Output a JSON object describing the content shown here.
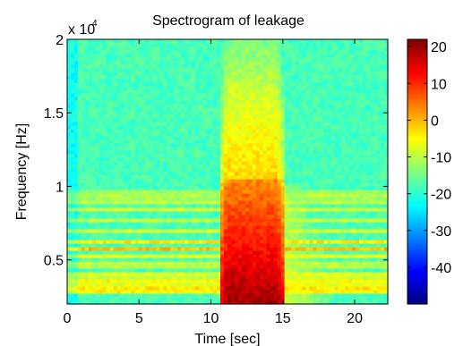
{
  "chart_data": {
    "type": "heatmap",
    "title": "Spectrogram of leakage",
    "xlabel": "Time [sec]",
    "ylabel": "Frequency [Hz]",
    "y_multiplier_label": "x 10",
    "y_multiplier_exponent": "4",
    "xlim": [
      0,
      22.3
    ],
    "ylim": [
      2000,
      20000
    ],
    "x_ticks": [
      0,
      5,
      10,
      15,
      20
    ],
    "x_tick_labels": [
      "0",
      "5",
      "10",
      "15",
      "20"
    ],
    "y_ticks": [
      5000,
      10000,
      15000,
      20000
    ],
    "y_tick_labels": [
      "0.5",
      "1",
      "1.5",
      "2"
    ],
    "colorbar": {
      "colormap": "jet",
      "range": [
        -50,
        22
      ],
      "ticks": [
        20,
        10,
        0,
        -10,
        -20,
        -30,
        -40
      ],
      "tick_labels": [
        "20",
        "10",
        "0",
        "-10",
        "-20",
        "-30",
        "-40"
      ]
    },
    "background_level_db": -18,
    "leak_interval_sec": [
      10.7,
      15.0
    ],
    "leak_peak_level_db": 18,
    "harmonic_bands_hz": [
      {
        "f": 3000,
        "level_db": -2
      },
      {
        "f": 3500,
        "level_db": -4
      },
      {
        "f": 4000,
        "level_db": -6
      },
      {
        "f": 4700,
        "level_db": -8
      },
      {
        "f": 5300,
        "level_db": -6
      },
      {
        "f": 5800,
        "level_db": 0
      },
      {
        "f": 6300,
        "level_db": -3
      },
      {
        "f": 7000,
        "level_db": -8
      },
      {
        "f": 7700,
        "level_db": -9
      },
      {
        "f": 8400,
        "level_db": -8
      },
      {
        "f": 9000,
        "level_db": -9
      },
      {
        "f": 9500,
        "level_db": -9
      }
    ]
  }
}
